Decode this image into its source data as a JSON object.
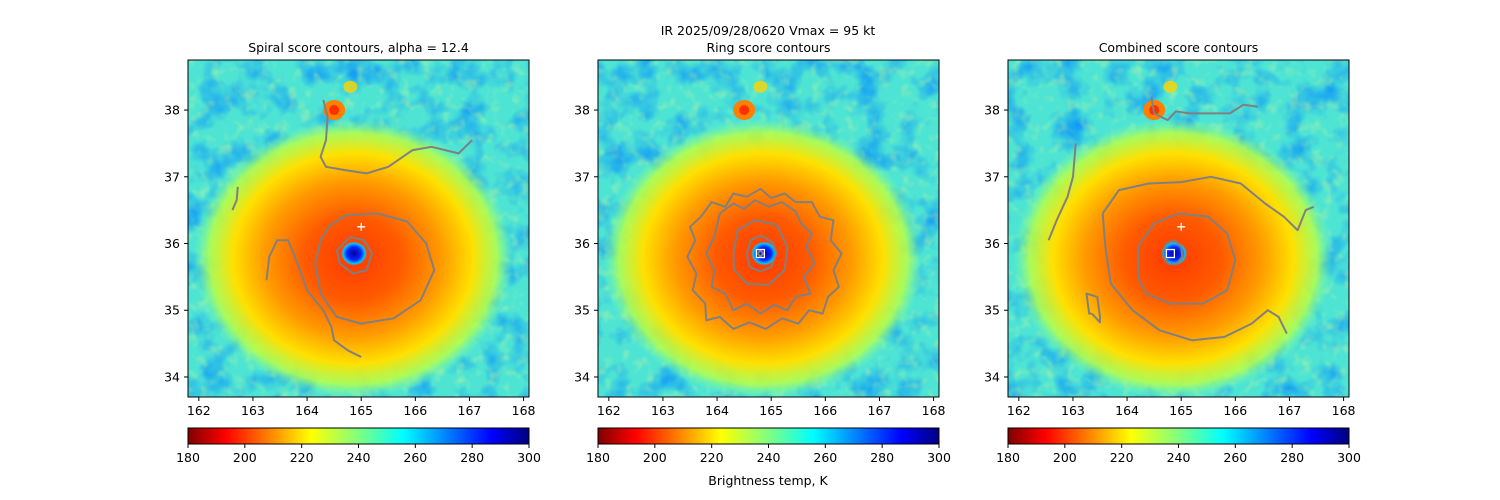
{
  "figure": {
    "suptitle_line1": "IR  2025/09/28/0620    Vmax = 95 kt",
    "colorbar_label": "Brightness temp, K"
  },
  "chart_data": [
    {
      "type": "heatmap",
      "title": "Spiral score contours, alpha = 12.4",
      "xlim": [
        161.8,
        168.1
      ],
      "ylim": [
        33.7,
        38.75
      ],
      "x_ticks": [
        "162",
        "163",
        "164",
        "165",
        "166",
        "167",
        "168"
      ],
      "y_ticks": [
        "34",
        "35",
        "36",
        "37",
        "38"
      ],
      "grid": false,
      "field": "IR brightness temperature (K)",
      "storm_center": [
        164.85,
        35.85
      ],
      "markers": [
        {
          "kind": "plus",
          "x": 165.0,
          "y": 36.25,
          "color": "#ffffff"
        }
      ],
      "contour_color": "#808080",
      "contours": [
        [
          [
            164.55,
            35.9
          ],
          [
            164.6,
            35.7
          ],
          [
            164.85,
            35.55
          ],
          [
            165.1,
            35.6
          ],
          [
            165.2,
            35.85
          ],
          [
            165.05,
            36.05
          ],
          [
            164.8,
            36.1
          ],
          [
            164.55,
            35.9
          ]
        ],
        [
          [
            164.4,
            36.25
          ],
          [
            164.7,
            36.42
          ],
          [
            165.3,
            36.45
          ],
          [
            165.85,
            36.33
          ],
          [
            166.2,
            36.0
          ],
          [
            166.35,
            35.6
          ],
          [
            166.1,
            35.15
          ],
          [
            165.6,
            34.88
          ],
          [
            165.0,
            34.8
          ],
          [
            164.55,
            34.9
          ],
          [
            164.25,
            35.25
          ],
          [
            164.15,
            35.7
          ],
          [
            164.25,
            36.05
          ],
          [
            164.4,
            36.25
          ]
        ],
        [
          [
            163.25,
            35.45
          ],
          [
            163.3,
            35.8
          ],
          [
            163.45,
            36.05
          ],
          [
            163.65,
            36.05
          ],
          [
            163.8,
            35.75
          ],
          [
            164.0,
            35.3
          ],
          [
            164.3,
            35.0
          ],
          [
            164.45,
            34.75
          ],
          [
            164.5,
            34.55
          ],
          [
            164.75,
            34.4
          ],
          [
            165.0,
            34.3
          ]
        ],
        [
          [
            164.3,
            38.15
          ],
          [
            164.38,
            37.9
          ],
          [
            164.35,
            37.55
          ],
          [
            164.25,
            37.3
          ],
          [
            164.35,
            37.15
          ],
          [
            164.7,
            37.1
          ],
          [
            165.1,
            37.05
          ],
          [
            165.5,
            37.15
          ],
          [
            165.95,
            37.4
          ],
          [
            166.3,
            37.45
          ],
          [
            166.55,
            37.4
          ],
          [
            166.8,
            37.35
          ],
          [
            167.05,
            37.55
          ]
        ],
        [
          [
            162.72,
            36.85
          ],
          [
            162.7,
            36.65
          ],
          [
            162.62,
            36.5
          ]
        ]
      ]
    },
    {
      "type": "heatmap",
      "title": "Ring score contours",
      "xlim": [
        161.8,
        168.1
      ],
      "ylim": [
        33.7,
        38.75
      ],
      "x_ticks": [
        "162",
        "163",
        "164",
        "165",
        "166",
        "167",
        "168"
      ],
      "y_ticks": [
        "34",
        "35",
        "36",
        "37",
        "38"
      ],
      "grid": false,
      "field": "IR brightness temperature (K)",
      "storm_center": [
        164.85,
        35.85
      ],
      "markers": [
        {
          "kind": "square",
          "x": 164.8,
          "y": 35.85,
          "color": "#ffffff"
        }
      ],
      "contour_color": "#808080",
      "contours": [
        [
          [
            164.75,
            35.85
          ],
          [
            164.8,
            35.9
          ],
          [
            164.85,
            35.85
          ],
          [
            164.8,
            35.8
          ],
          [
            164.75,
            35.85
          ]
        ],
        [
          [
            164.55,
            35.85
          ],
          [
            164.62,
            36.05
          ],
          [
            164.82,
            36.12
          ],
          [
            165.02,
            36.02
          ],
          [
            165.1,
            35.85
          ],
          [
            165.0,
            35.65
          ],
          [
            164.8,
            35.58
          ],
          [
            164.6,
            35.65
          ],
          [
            164.55,
            35.85
          ]
        ],
        [
          [
            164.3,
            35.85
          ],
          [
            164.38,
            36.2
          ],
          [
            164.7,
            36.35
          ],
          [
            165.1,
            36.28
          ],
          [
            165.3,
            35.95
          ],
          [
            165.25,
            35.6
          ],
          [
            164.95,
            35.38
          ],
          [
            164.55,
            35.4
          ],
          [
            164.32,
            35.6
          ],
          [
            164.3,
            35.85
          ]
        ],
        [
          [
            163.95,
            36.1
          ],
          [
            164.05,
            36.45
          ],
          [
            164.3,
            36.6
          ],
          [
            164.5,
            36.52
          ],
          [
            164.7,
            36.65
          ],
          [
            164.95,
            36.55
          ],
          [
            165.2,
            36.62
          ],
          [
            165.45,
            36.48
          ],
          [
            165.55,
            36.3
          ],
          [
            165.75,
            36.15
          ],
          [
            165.65,
            35.95
          ],
          [
            165.8,
            35.7
          ],
          [
            165.6,
            35.5
          ],
          [
            165.72,
            35.25
          ],
          [
            165.45,
            35.2
          ],
          [
            165.3,
            35.0
          ],
          [
            165.05,
            35.08
          ],
          [
            164.8,
            34.95
          ],
          [
            164.55,
            35.1
          ],
          [
            164.3,
            35.0
          ],
          [
            164.15,
            35.25
          ],
          [
            163.9,
            35.35
          ],
          [
            163.95,
            35.6
          ],
          [
            163.8,
            35.85
          ],
          [
            163.95,
            36.1
          ]
        ],
        [
          [
            163.7,
            36.4
          ],
          [
            163.9,
            36.62
          ],
          [
            164.15,
            36.55
          ],
          [
            164.3,
            36.75
          ],
          [
            164.55,
            36.7
          ],
          [
            164.8,
            36.82
          ],
          [
            165.0,
            36.68
          ],
          [
            165.25,
            36.75
          ],
          [
            165.45,
            36.62
          ],
          [
            165.75,
            36.62
          ],
          [
            165.9,
            36.4
          ],
          [
            166.15,
            36.35
          ],
          [
            166.1,
            36.05
          ],
          [
            166.3,
            35.85
          ],
          [
            166.15,
            35.6
          ],
          [
            166.25,
            35.35
          ],
          [
            166.05,
            35.2
          ],
          [
            165.95,
            34.95
          ],
          [
            165.7,
            35.0
          ],
          [
            165.5,
            34.8
          ],
          [
            165.2,
            34.88
          ],
          [
            164.9,
            34.72
          ],
          [
            164.6,
            34.82
          ],
          [
            164.3,
            34.72
          ],
          [
            164.05,
            34.9
          ],
          [
            163.8,
            34.85
          ],
          [
            163.78,
            35.1
          ],
          [
            163.55,
            35.3
          ],
          [
            163.62,
            35.55
          ],
          [
            163.45,
            35.8
          ],
          [
            163.6,
            36.05
          ],
          [
            163.5,
            36.25
          ],
          [
            163.7,
            36.4
          ]
        ]
      ]
    },
    {
      "type": "heatmap",
      "title": "Combined score contours",
      "xlim": [
        161.8,
        168.1
      ],
      "ylim": [
        33.7,
        38.75
      ],
      "x_ticks": [
        "162",
        "163",
        "164",
        "165",
        "166",
        "167",
        "168"
      ],
      "y_ticks": [
        "34",
        "35",
        "36",
        "37",
        "38"
      ],
      "grid": false,
      "field": "IR brightness temperature (K)",
      "storm_center": [
        164.85,
        35.85
      ],
      "markers": [
        {
          "kind": "plus",
          "x": 165.0,
          "y": 36.25,
          "color": "#ffffff"
        },
        {
          "kind": "square",
          "x": 164.8,
          "y": 35.85,
          "color": "#ffffff"
        }
      ],
      "contour_color": "#808080",
      "contours": [
        [
          [
            164.65,
            35.85
          ],
          [
            164.72,
            36.0
          ],
          [
            164.88,
            36.05
          ],
          [
            165.0,
            35.95
          ],
          [
            165.02,
            35.8
          ],
          [
            164.9,
            35.68
          ],
          [
            164.75,
            35.7
          ],
          [
            164.65,
            35.85
          ]
        ],
        [
          [
            164.2,
            35.5
          ],
          [
            164.35,
            35.25
          ],
          [
            164.8,
            35.1
          ],
          [
            165.4,
            35.1
          ],
          [
            165.85,
            35.3
          ],
          [
            166.0,
            35.75
          ],
          [
            165.85,
            36.15
          ],
          [
            165.5,
            36.4
          ],
          [
            164.95,
            36.45
          ],
          [
            164.5,
            36.3
          ],
          [
            164.2,
            35.95
          ],
          [
            164.2,
            35.5
          ]
        ],
        [
          [
            163.55,
            36.45
          ],
          [
            163.85,
            36.8
          ],
          [
            164.4,
            36.9
          ],
          [
            165.0,
            36.92
          ],
          [
            165.55,
            37.0
          ],
          [
            166.1,
            36.9
          ],
          [
            166.55,
            36.6
          ],
          [
            166.9,
            36.4
          ],
          [
            167.15,
            36.2
          ],
          [
            167.3,
            36.5
          ],
          [
            167.45,
            36.55
          ]
        ],
        [
          [
            163.55,
            36.45
          ],
          [
            163.6,
            35.95
          ],
          [
            163.7,
            35.4
          ],
          [
            164.1,
            35.0
          ],
          [
            164.6,
            34.7
          ],
          [
            165.2,
            34.55
          ],
          [
            165.8,
            34.6
          ],
          [
            166.3,
            34.8
          ],
          [
            166.6,
            35.0
          ],
          [
            166.8,
            34.9
          ],
          [
            166.95,
            34.65
          ]
        ],
        [
          [
            163.35,
            34.95
          ],
          [
            163.5,
            34.82
          ],
          [
            163.5,
            34.9
          ],
          [
            163.45,
            35.2
          ],
          [
            163.25,
            35.25
          ],
          [
            163.3,
            34.95
          ],
          [
            163.35,
            34.95
          ]
        ],
        [
          [
            162.55,
            36.05
          ],
          [
            162.7,
            36.35
          ],
          [
            162.9,
            36.7
          ],
          [
            163.0,
            37.0
          ],
          [
            163.05,
            37.5
          ]
        ],
        [
          [
            164.45,
            38.2
          ],
          [
            164.5,
            37.95
          ],
          [
            164.75,
            37.85
          ],
          [
            164.9,
            37.98
          ],
          [
            165.15,
            37.95
          ],
          [
            165.55,
            37.95
          ],
          [
            165.9,
            37.95
          ],
          [
            166.15,
            38.08
          ],
          [
            166.42,
            38.05
          ]
        ]
      ]
    }
  ],
  "colorbars": [
    {
      "min": 180,
      "max": 300,
      "ticks": [
        "180",
        "200",
        "220",
        "240",
        "260",
        "280",
        "300"
      ]
    },
    {
      "min": 180,
      "max": 300,
      "ticks": [
        "180",
        "200",
        "220",
        "240",
        "260",
        "280",
        "300"
      ]
    },
    {
      "min": 180,
      "max": 300,
      "ticks": [
        "180",
        "200",
        "220",
        "240",
        "260",
        "280",
        "300"
      ]
    }
  ],
  "colormap": [
    "#800000",
    "#ff0000",
    "#ff8000",
    "#ffff00",
    "#80ff80",
    "#00ffff",
    "#0080ff",
    "#0000ff",
    "#000080"
  ]
}
